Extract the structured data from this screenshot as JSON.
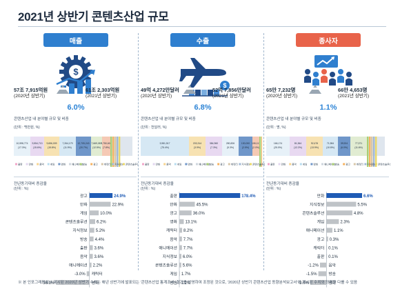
{
  "title": "2021년 상반기 콘텐츠산업 규모",
  "footnote": "※ 본 인포그래픽에서 제시된 2020년 상반기 수치는 해년 상반기에 발표되는 '콘텐츠산업 통계조사' 결과를 반영하여 조정된 것으로, '2020년 상반기 콘텐츠산업 동향분석보고서'에 제시된 수치와 정확한 다를 수 있음",
  "colors": {
    "accent": "#2f7fcf",
    "highlight_bar": "#1f5bb5",
    "bar": "#bfc3c7",
    "pct": "#2f85d6",
    "workers_pill": "#e8634a"
  },
  "legend_labels": [
    "출판",
    "만화",
    "음악",
    "게임",
    "영화",
    "애니메이션",
    "방송",
    "광고",
    "캐릭터",
    "지식정보",
    "콘텐츠솔루션"
  ],
  "legend_colors": [
    "#f2a6c8",
    "#e2d6ef",
    "#f7d38d",
    "#b7dcef",
    "#6f96c9",
    "#ced5dd",
    "#a9cf73",
    "#f6b25f",
    "#d7c6a8",
    "#a0b8d4",
    "#e9d86a"
  ],
  "panels": [
    {
      "pill_label": "매출",
      "pill_icon": "gear-dollar-icon",
      "v2020_big": "57조 7,915억원",
      "v2020_small": "(2020년 상반기)",
      "v2021_big": "61조 2,303억원",
      "v2021_small": "(2021년 상반기)",
      "growth": "6.0%",
      "sub1": "콘텐츠산업 내 분야별 규모 및 비중",
      "unit1": "(단위 : 백만원, %)",
      "sub2": "전년동기대비 증감율",
      "unit2": "(단위 : %)",
      "chart_data": {
        "type": "bar",
        "categories": [
          "광고",
          "만화",
          "게임",
          "콘텐츠솔루션",
          "지식정보",
          "방송",
          "출판",
          "음악",
          "애니메이션",
          "캐릭터",
          "영화"
        ],
        "values": [
          24.9,
          22.9,
          10.0,
          6.2,
          5.2,
          4.4,
          3.6,
          3.6,
          2.2,
          -3.0,
          -36.1
        ],
        "highlight": "광고",
        "xlim": [
          -40,
          30
        ]
      },
      "stack_labels": [
        "10,598,774 (17.3%)",
        "9,554,713 (15.6%)",
        "9,656,009 (15.8%)",
        "7,264,179 (11.9%)",
        "12,705,243 (20.7%)",
        "7,669,087 (12.5%)",
        "4,750,602 (7.8%)"
      ],
      "stack_widths": [
        24,
        20,
        22,
        24,
        22,
        16,
        12
      ],
      "stack_colors": [
        "#e7f1f8",
        "#e8d9f1",
        "#f7e2b2",
        "#d6e8f4",
        "#6f96c9",
        "#e1ecd2",
        "#f5c9b4"
      ]
    },
    {
      "pill_label": "수출",
      "pill_icon": "airplane-icon",
      "v2020_big": "49억 4,272만달러",
      "v2020_small": "(2020년 상반기)",
      "v2021_big": "52억 7,856만달러",
      "v2021_small": "(2021년 상반기)",
      "growth": "6.8%",
      "sub1": "콘텐츠산업 내 분야별 규모 및 비중",
      "unit1": "(단위 : 천달러, %)",
      "sub2": "전년동기대비 증감율",
      "unit2": "(단위 : %)",
      "chart_data": {
        "type": "bar",
        "categories": [
          "출판",
          "만화",
          "광고",
          "영화",
          "캐릭터",
          "음악",
          "애니메이션",
          "지식정보",
          "콘텐츠솔루션",
          "게임",
          "방송"
        ],
        "values": [
          178.4,
          45.5,
          36.0,
          13.1,
          8.2,
          7.7,
          7.7,
          6.0,
          5.6,
          1.7,
          1.2
        ],
        "highlight": "출판",
        "xlim": [
          0,
          190
        ]
      },
      "stack_labels": [
        "3,981,517 (75.4%)",
        "203,314 (3.9%)",
        "384,960 (7.3%)",
        "280,826 (5.3%)",
        "130,000 (2.5%)",
        "108,117 (2.0%)"
      ],
      "stack_widths": [
        70,
        24,
        24,
        24,
        20,
        10
      ],
      "stack_colors": [
        "#d6e8f4",
        "#f7e2b2",
        "#e8d9f1",
        "#e7f1f8",
        "#6f96c9",
        "#f5c9b4"
      ]
    },
    {
      "pill_label": "종사자",
      "pill_icon": "people-icon",
      "v2020_big": "65만 7,232명",
      "v2020_small": "(2020년 상반기)",
      "v2021_big": "66만 4,653명",
      "v2021_small": "(2021년 상반기)",
      "growth": "1.1%",
      "sub1": "콘텐츠산업 내 분야별 규모 및 비중",
      "unit1": "(단위 : 명, %)",
      "sub2": "전년동기대비 증감율",
      "unit2": "(단위 : %)",
      "chart_data": {
        "type": "bar",
        "categories": [
          "만화",
          "지식정보",
          "콘텐츠솔루션",
          "게임",
          "애니메이션",
          "광고",
          "캐릭터",
          "출판",
          "음악",
          "방송",
          "영화"
        ],
        "values": [
          6.6,
          5.5,
          4.8,
          2.3,
          1.1,
          0.3,
          0.1,
          0.1,
          -1.2,
          -1.5,
          -3.0
        ],
        "highlight": "만화",
        "xlim": [
          -4,
          8
        ]
      },
      "stack_labels": [
        "166,174 (25.0%)",
        "81,364 (12.2%)",
        "92,476 (13.9%)",
        "71,984 (10.8%)",
        "39,924 (6.0%)",
        "77,371 (11.6%)"
      ],
      "stack_widths": [
        34,
        24,
        24,
        22,
        18,
        24
      ],
      "stack_colors": [
        "#e7f1f8",
        "#e8d9f1",
        "#f7e2b2",
        "#d6e8f4",
        "#6f96c9",
        "#e1ecd2"
      ]
    }
  ]
}
